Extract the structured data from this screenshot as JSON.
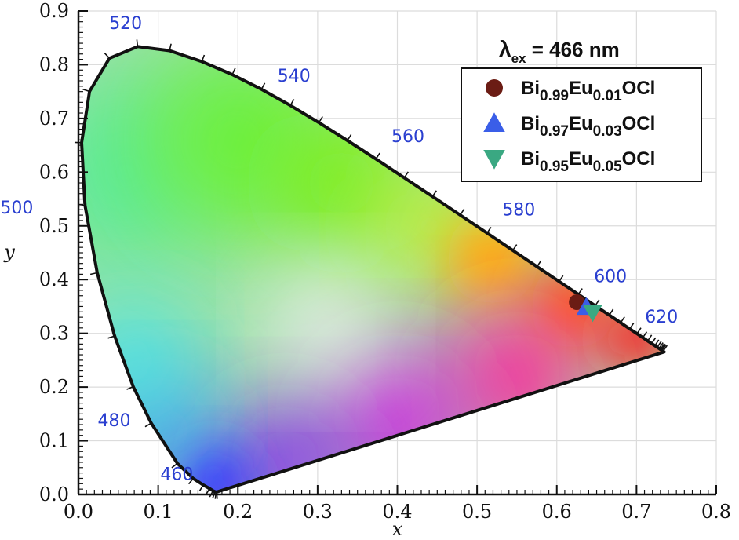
{
  "chart_data": {
    "type": "scatter",
    "title": "",
    "xlabel": "x",
    "ylabel": "y",
    "xlim": [
      0.0,
      0.8
    ],
    "ylim": [
      0.0,
      0.9
    ],
    "x_ticks": [
      "0.0",
      "0.1",
      "0.2",
      "0.3",
      "0.4",
      "0.5",
      "0.6",
      "0.7",
      "0.8"
    ],
    "y_ticks": [
      "0.0",
      "0.1",
      "0.2",
      "0.3",
      "0.4",
      "0.5",
      "0.6",
      "0.7",
      "0.8",
      "0.9"
    ],
    "wavelength_labels": [
      {
        "text": "460",
        "x": 0.144,
        "y": 0.03
      },
      {
        "text": "480",
        "x": 0.091,
        "y": 0.133
      },
      {
        "text": "500",
        "x": 0.0082,
        "y": 0.538
      },
      {
        "text": "520",
        "x": 0.074,
        "y": 0.834
      },
      {
        "text": "540",
        "x": 0.23,
        "y": 0.754
      },
      {
        "text": "560",
        "x": 0.373,
        "y": 0.624
      },
      {
        "text": "580",
        "x": 0.512,
        "y": 0.487
      },
      {
        "text": "600",
        "x": 0.627,
        "y": 0.372
      },
      {
        "text": "620",
        "x": 0.691,
        "y": 0.308
      }
    ],
    "legend": {
      "title_symbol": "λ",
      "title_subscript": "ex",
      "title_rest": " = 466 nm",
      "placement": "top-right",
      "entries": [
        {
          "marker": "circle",
          "color": "#6b1c14",
          "parts": [
            [
              "Bi",
              false
            ],
            [
              "0.99",
              true
            ],
            [
              "Eu",
              false
            ],
            [
              "0.01",
              true
            ],
            [
              "OCl",
              false
            ]
          ]
        },
        {
          "marker": "triangle-up",
          "color": "#3a5ee8",
          "parts": [
            [
              "Bi",
              false
            ],
            [
              "0.97",
              true
            ],
            [
              "Eu",
              false
            ],
            [
              "0.03",
              true
            ],
            [
              "OCl",
              false
            ]
          ]
        },
        {
          "marker": "triangle-down",
          "color": "#3aa882",
          "parts": [
            [
              "Bi",
              false
            ],
            [
              "0.95",
              true
            ],
            [
              "Eu",
              false
            ],
            [
              "0.05",
              true
            ],
            [
              "OCl",
              false
            ]
          ]
        }
      ]
    },
    "series": [
      {
        "name": "Bi0.99Eu0.01OCl",
        "marker": "circle",
        "color": "#6b1c14",
        "x": [
          0.625
        ],
        "y": [
          0.358
        ]
      },
      {
        "name": "Bi0.97Eu0.03OCl",
        "marker": "triangle-up",
        "color": "#3a5ee8",
        "x": [
          0.637
        ],
        "y": [
          0.349
        ]
      },
      {
        "name": "Bi0.95Eu0.05OCl",
        "marker": "triangle-down",
        "color": "#3aa882",
        "x": [
          0.645
        ],
        "y": [
          0.339
        ]
      }
    ],
    "spectral_locus": [
      [
        0.1741,
        0.005
      ],
      [
        0.1733,
        0.0048
      ],
      [
        0.1726,
        0.0048
      ],
      [
        0.1714,
        0.0051
      ],
      [
        0.1689,
        0.0069
      ],
      [
        0.1644,
        0.0109
      ],
      [
        0.1566,
        0.0177
      ],
      [
        0.144,
        0.0297
      ],
      [
        0.1241,
        0.0578
      ],
      [
        0.0913,
        0.1327
      ],
      [
        0.0687,
        0.2007
      ],
      [
        0.0454,
        0.295
      ],
      [
        0.0235,
        0.4127
      ],
      [
        0.0082,
        0.5384
      ],
      [
        0.0039,
        0.6548
      ],
      [
        0.0139,
        0.7502
      ],
      [
        0.0389,
        0.812
      ],
      [
        0.0743,
        0.8338
      ],
      [
        0.1142,
        0.8262
      ],
      [
        0.1547,
        0.8059
      ],
      [
        0.1929,
        0.7816
      ],
      [
        0.2296,
        0.7543
      ],
      [
        0.2658,
        0.7243
      ],
      [
        0.3016,
        0.6923
      ],
      [
        0.3373,
        0.6589
      ],
      [
        0.3731,
        0.6245
      ],
      [
        0.4087,
        0.5896
      ],
      [
        0.4441,
        0.5547
      ],
      [
        0.4788,
        0.5202
      ],
      [
        0.5125,
        0.4866
      ],
      [
        0.5448,
        0.4544
      ],
      [
        0.5752,
        0.4242
      ],
      [
        0.6029,
        0.3965
      ],
      [
        0.627,
        0.3725
      ],
      [
        0.6482,
        0.3514
      ],
      [
        0.6658,
        0.334
      ],
      [
        0.6801,
        0.3197
      ],
      [
        0.6915,
        0.3083
      ],
      [
        0.7006,
        0.2993
      ],
      [
        0.7079,
        0.292
      ],
      [
        0.714,
        0.2859
      ],
      [
        0.719,
        0.2809
      ],
      [
        0.723,
        0.277
      ],
      [
        0.726,
        0.274
      ],
      [
        0.7283,
        0.2717
      ],
      [
        0.73,
        0.27
      ],
      [
        0.7311,
        0.2689
      ],
      [
        0.732,
        0.268
      ],
      [
        0.7334,
        0.2666
      ],
      [
        0.7347,
        0.2653
      ]
    ]
  }
}
